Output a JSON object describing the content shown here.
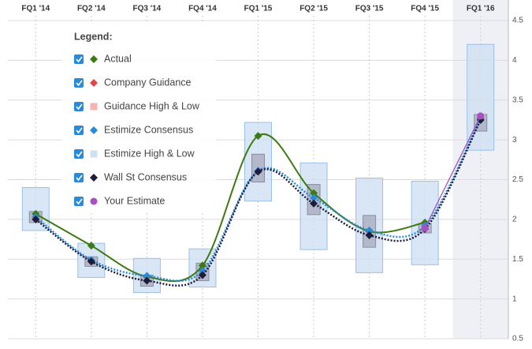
{
  "chart_data": {
    "type": "line",
    "categories": [
      "FQ1 '14",
      "FQ2 '14",
      "FQ3 '14",
      "FQ4 '14",
      "FQ1 '15",
      "FQ2 '15",
      "FQ3 '15",
      "FQ4 '15",
      "FQ1 '16"
    ],
    "ylim": [
      0.5,
      4.5
    ],
    "yticks": [
      0.5,
      1,
      1.5,
      2,
      2.5,
      3,
      3.5,
      4,
      4.5
    ],
    "grid": true,
    "highlight_category": 8,
    "legend_title": "Legend:",
    "series": [
      {
        "name": "Actual",
        "kind": "line",
        "marker": "diamond",
        "dash": false,
        "color": "#3d7a12",
        "values": [
          2.07,
          1.67,
          1.28,
          1.42,
          3.05,
          2.33,
          1.85,
          1.96,
          null
        ]
      },
      {
        "name": "Company Guidance",
        "kind": "line",
        "marker": "diamond",
        "dash": false,
        "color": "#e04848",
        "values": [
          null,
          null,
          null,
          null,
          null,
          null,
          null,
          null,
          null
        ]
      },
      {
        "name": "Guidance High & Low",
        "kind": "range",
        "color": "#f4b4b4",
        "low": [
          null,
          null,
          null,
          null,
          null,
          null,
          null,
          null,
          null
        ],
        "high": [
          null,
          null,
          null,
          null,
          null,
          null,
          null,
          null,
          null
        ]
      },
      {
        "name": "Estimize Consensus",
        "kind": "line",
        "marker": "diamond",
        "dash": true,
        "color": "#2b8ad8",
        "values": [
          2.03,
          1.49,
          1.29,
          1.35,
          2.61,
          2.27,
          1.86,
          1.92,
          3.27
        ]
      },
      {
        "name": "Estimize High & Low",
        "kind": "range",
        "color": "#cfe0f3",
        "low": [
          1.86,
          1.27,
          1.08,
          1.15,
          2.23,
          1.62,
          1.33,
          1.43,
          2.87
        ],
        "high": [
          2.4,
          1.7,
          1.51,
          1.63,
          3.22,
          2.71,
          2.52,
          2.48,
          4.2
        ]
      },
      {
        "name": "Wall St Consensus",
        "kind": "line",
        "marker": "diamond",
        "dash": true,
        "color": "#1c1c3c",
        "values": [
          2.0,
          1.47,
          1.23,
          1.3,
          2.6,
          2.2,
          1.8,
          1.88,
          3.25
        ]
      },
      {
        "name": "Your Estimate",
        "kind": "line",
        "marker": "circle",
        "dash": false,
        "color": "#a94fc2",
        "values": [
          null,
          null,
          null,
          null,
          null,
          null,
          null,
          1.89,
          3.3
        ]
      },
      {
        "kind": "range",
        "color": "#a6a9bb",
        "low": [
          1.96,
          1.41,
          1.16,
          1.23,
          2.47,
          2.06,
          1.65,
          1.83,
          3.11
        ],
        "high": [
          2.1,
          1.53,
          1.3,
          1.45,
          2.82,
          2.44,
          2.05,
          1.95,
          3.32
        ]
      }
    ]
  }
}
